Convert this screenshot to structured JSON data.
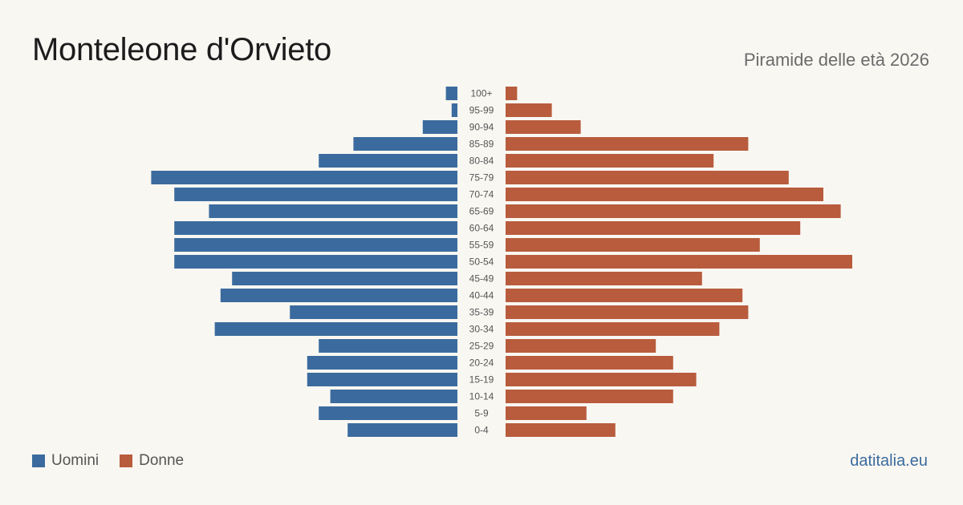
{
  "header": {
    "title": "Monteleone d'Orvieto",
    "subtitle": "Piramide delle età 2026"
  },
  "legend": {
    "men_label": "Uomini",
    "women_label": "Donne",
    "men_color": "#3b6b9e",
    "women_color": "#b85c3d"
  },
  "footer": {
    "brand": "datitalia.eu"
  },
  "chart_data": {
    "type": "bar",
    "orientation": "horizontal-population-pyramid",
    "categories": [
      "100+",
      "95-99",
      "90-94",
      "85-89",
      "80-84",
      "75-79",
      "70-74",
      "65-69",
      "60-64",
      "55-59",
      "50-54",
      "45-49",
      "40-44",
      "35-39",
      "30-34",
      "25-29",
      "20-24",
      "15-19",
      "10-14",
      "5-9",
      "0-4"
    ],
    "series": [
      {
        "name": "Uomini",
        "color": "#3b6b9e",
        "values": [
          2,
          1,
          6,
          18,
          24,
          53,
          49,
          43,
          49,
          49,
          49,
          39,
          41,
          29,
          42,
          24,
          26,
          26,
          22,
          24,
          19
        ]
      },
      {
        "name": "Donne",
        "color": "#b85c3d",
        "values": [
          2,
          8,
          13,
          42,
          36,
          49,
          55,
          58,
          51,
          44,
          60,
          34,
          41,
          42,
          37,
          26,
          29,
          33,
          29,
          14,
          19
        ]
      }
    ],
    "grid": false,
    "legend_position": "bottom-left"
  }
}
